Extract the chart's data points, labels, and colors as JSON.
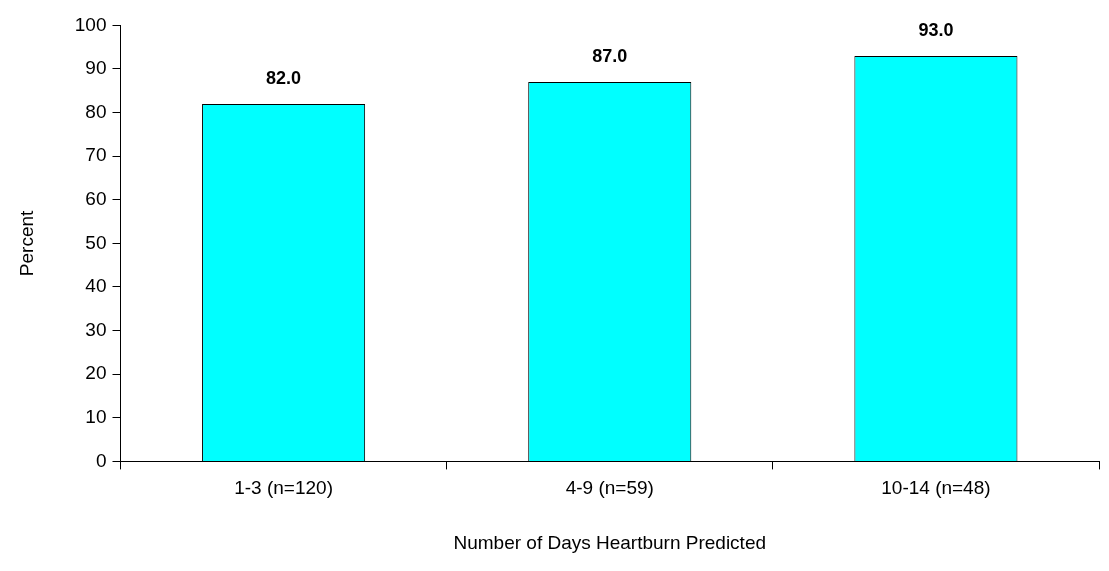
{
  "chart_data": {
    "type": "bar",
    "xlabel": "Number of Days Heartburn Predicted",
    "ylabel": "Percent",
    "categories": [
      "1-3 (n=120)",
      "4-9 (n=59)",
      "10-14 (n=48)"
    ],
    "values": [
      82,
      87,
      93
    ],
    "value_labels": [
      "82.0",
      "87.0",
      "93.0"
    ],
    "color": "#00ffff",
    "ylim": [
      0,
      100
    ],
    "yticks": [
      0,
      10,
      20,
      30,
      40,
      50,
      60,
      70,
      80,
      90,
      100
    ],
    "legend": false
  }
}
